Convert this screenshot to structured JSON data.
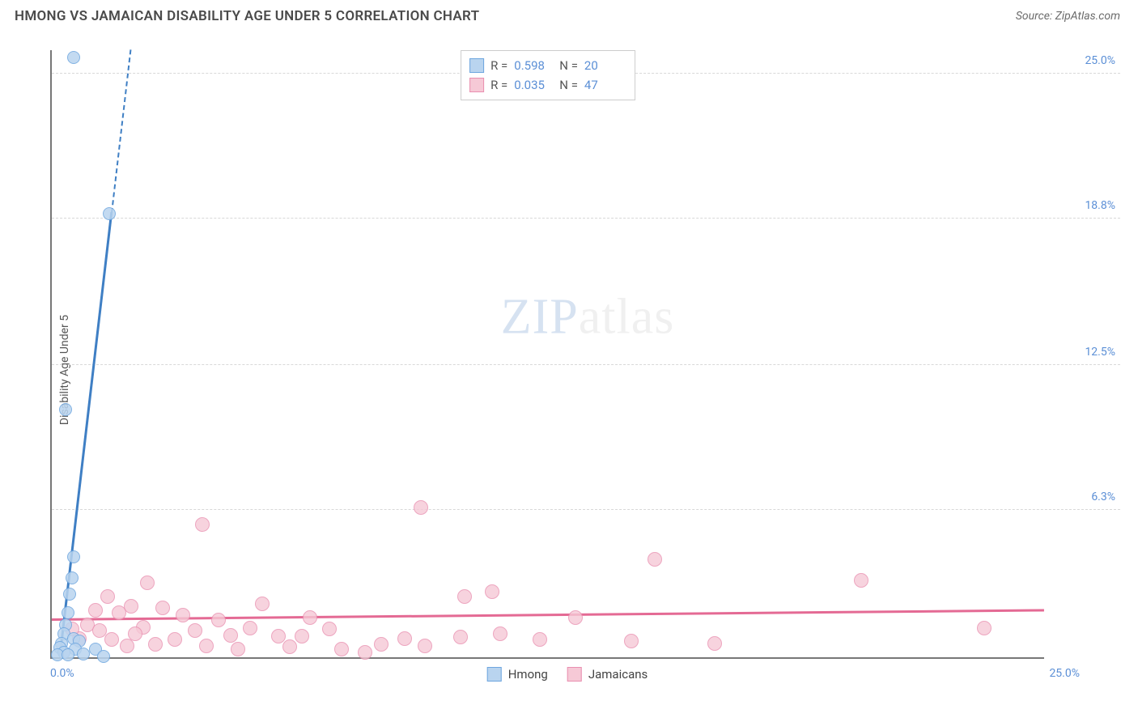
{
  "header": {
    "title": "HMONG VS JAMAICAN DISABILITY AGE UNDER 5 CORRELATION CHART",
    "source_prefix": "Source: ",
    "source_name": "ZipAtlas.com"
  },
  "axes": {
    "ylabel": "Disability Age Under 5",
    "xmin": 0.0,
    "xmax": 25.0,
    "ymin": 0.0,
    "ymax": 26.0,
    "x_origin_label": "0.0%",
    "x_max_label": "25.0%",
    "yticks": [
      {
        "v": 6.3,
        "label": "6.3%"
      },
      {
        "v": 12.5,
        "label": "12.5%"
      },
      {
        "v": 18.8,
        "label": "18.8%"
      },
      {
        "v": 25.0,
        "label": "25.0%"
      }
    ],
    "grid_color": "#d8d8d8"
  },
  "watermark": {
    "zip": "ZIP",
    "atlas": "atlas"
  },
  "series": {
    "hmong": {
      "label": "Hmong",
      "fill": "#b9d4ef",
      "stroke": "#6ea6df",
      "marker_radius": 8,
      "marker_opacity": 0.85,
      "trend": {
        "color": "#3f7fc4",
        "width": 3,
        "x1": 0.2,
        "y1": 0.0,
        "x2": 1.5,
        "y2": 19.0,
        "dash_extension_y": 26.0
      },
      "stats": {
        "R_label": "R =",
        "R": "0.598",
        "N_label": "N =",
        "N": "20"
      },
      "points": [
        {
          "x": 0.55,
          "y": 25.7
        },
        {
          "x": 1.45,
          "y": 19.0
        },
        {
          "x": 0.35,
          "y": 10.6
        },
        {
          "x": 0.55,
          "y": 4.3
        },
        {
          "x": 0.5,
          "y": 3.4
        },
        {
          "x": 0.45,
          "y": 2.7
        },
        {
          "x": 0.4,
          "y": 1.9
        },
        {
          "x": 0.35,
          "y": 1.4
        },
        {
          "x": 0.3,
          "y": 1.0
        },
        {
          "x": 0.55,
          "y": 0.8
        },
        {
          "x": 0.7,
          "y": 0.7
        },
        {
          "x": 0.25,
          "y": 0.6
        },
        {
          "x": 0.2,
          "y": 0.4
        },
        {
          "x": 0.6,
          "y": 0.35
        },
        {
          "x": 1.1,
          "y": 0.35
        },
        {
          "x": 0.3,
          "y": 0.2
        },
        {
          "x": 0.15,
          "y": 0.1
        },
        {
          "x": 0.4,
          "y": 0.1
        },
        {
          "x": 0.8,
          "y": 0.15
        },
        {
          "x": 1.3,
          "y": 0.05
        }
      ]
    },
    "jamaican": {
      "label": "Jamaicans",
      "fill": "#f6c9d6",
      "stroke": "#e98fb0",
      "marker_radius": 9,
      "marker_opacity": 0.8,
      "trend": {
        "color": "#e46a94",
        "width": 3,
        "x1": 0.0,
        "y1": 1.55,
        "x2": 25.0,
        "y2": 1.95
      },
      "stats": {
        "R_label": "R =",
        "R": "0.035",
        "N_label": "N =",
        "N": "47"
      },
      "points": [
        {
          "x": 9.3,
          "y": 6.4
        },
        {
          "x": 3.8,
          "y": 5.7
        },
        {
          "x": 15.2,
          "y": 4.2
        },
        {
          "x": 20.4,
          "y": 3.3
        },
        {
          "x": 2.4,
          "y": 3.2
        },
        {
          "x": 1.4,
          "y": 2.6
        },
        {
          "x": 11.1,
          "y": 2.8
        },
        {
          "x": 10.4,
          "y": 2.6
        },
        {
          "x": 5.3,
          "y": 2.3
        },
        {
          "x": 2.0,
          "y": 2.2
        },
        {
          "x": 2.8,
          "y": 2.1
        },
        {
          "x": 1.1,
          "y": 2.0
        },
        {
          "x": 1.7,
          "y": 1.9
        },
        {
          "x": 3.3,
          "y": 1.8
        },
        {
          "x": 4.2,
          "y": 1.6
        },
        {
          "x": 6.5,
          "y": 1.7
        },
        {
          "x": 13.2,
          "y": 1.7
        },
        {
          "x": 23.5,
          "y": 1.25
        },
        {
          "x": 0.9,
          "y": 1.4
        },
        {
          "x": 2.3,
          "y": 1.3
        },
        {
          "x": 5.0,
          "y": 1.25
        },
        {
          "x": 7.0,
          "y": 1.2
        },
        {
          "x": 4.5,
          "y": 0.95
        },
        {
          "x": 5.7,
          "y": 0.9
        },
        {
          "x": 6.3,
          "y": 0.9
        },
        {
          "x": 8.3,
          "y": 0.55
        },
        {
          "x": 8.9,
          "y": 0.8
        },
        {
          "x": 9.4,
          "y": 0.5
        },
        {
          "x": 10.3,
          "y": 0.85
        },
        {
          "x": 11.3,
          "y": 1.0
        },
        {
          "x": 12.3,
          "y": 0.75
        },
        {
          "x": 14.6,
          "y": 0.7
        },
        {
          "x": 16.7,
          "y": 0.6
        },
        {
          "x": 3.1,
          "y": 0.75
        },
        {
          "x": 3.9,
          "y": 0.5
        },
        {
          "x": 4.7,
          "y": 0.35
        },
        {
          "x": 2.6,
          "y": 0.55
        },
        {
          "x": 1.5,
          "y": 0.75
        },
        {
          "x": 1.9,
          "y": 0.5
        },
        {
          "x": 7.3,
          "y": 0.35
        },
        {
          "x": 7.9,
          "y": 0.2
        },
        {
          "x": 6.0,
          "y": 0.45
        },
        {
          "x": 0.7,
          "y": 0.8
        },
        {
          "x": 0.5,
          "y": 1.2
        },
        {
          "x": 1.2,
          "y": 1.15
        },
        {
          "x": 2.1,
          "y": 1.0
        },
        {
          "x": 3.6,
          "y": 1.15
        }
      ]
    }
  }
}
